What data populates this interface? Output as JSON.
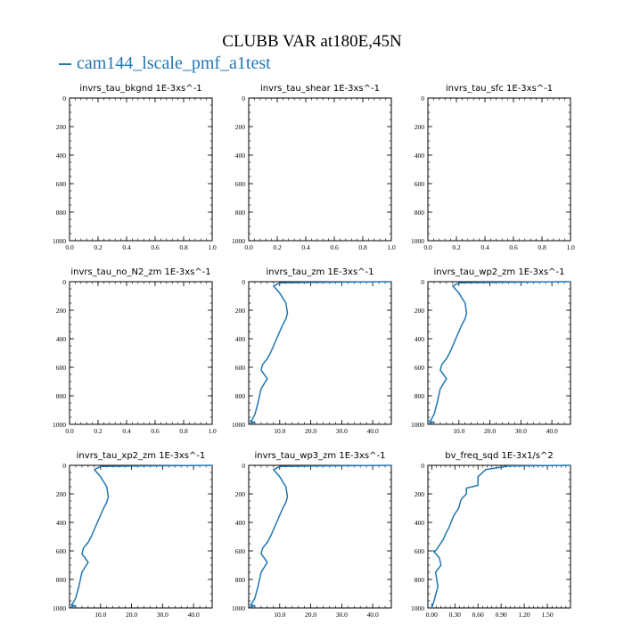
{
  "figure": {
    "title": "CLUBB VAR at180E,45N",
    "legend_label": "cam144_lscale_pmf_a1test",
    "line_color": "#1f77b4"
  },
  "chart_data": [
    {
      "type": "line",
      "title": "invrs_tau_bkgnd   1E-3xs^-1",
      "xlim": [
        0,
        1.0
      ],
      "ylim": [
        0,
        1000
      ],
      "y_inverted": true,
      "xticks": [
        0.0,
        0.2,
        0.4,
        0.6,
        0.8,
        1.0
      ],
      "xtick_labels": [
        "0.0",
        "0.2",
        "0.4",
        "0.6",
        "0.8",
        "1.0"
      ],
      "yticks": [
        0,
        200,
        400,
        600,
        800,
        1000
      ],
      "series": [
        {
          "x": [],
          "y": []
        }
      ]
    },
    {
      "type": "line",
      "title": "invrs_tau_shear   1E-3xs^-1",
      "xlim": [
        0,
        1.0
      ],
      "ylim": [
        0,
        1000
      ],
      "y_inverted": true,
      "xticks": [
        0.0,
        0.2,
        0.4,
        0.6,
        0.8,
        1.0
      ],
      "xtick_labels": [
        "0.0",
        "0.2",
        "0.4",
        "0.6",
        "0.8",
        "1.0"
      ],
      "yticks": [
        0,
        200,
        400,
        600,
        800,
        1000
      ],
      "series": [
        {
          "x": [],
          "y": []
        }
      ]
    },
    {
      "type": "line",
      "title": "invrs_tau_sfc   1E-3xs^-1",
      "xlim": [
        0,
        1.0
      ],
      "ylim": [
        0,
        1000
      ],
      "y_inverted": true,
      "xticks": [
        0.0,
        0.2,
        0.4,
        0.6,
        0.8,
        1.0
      ],
      "xtick_labels": [
        "0.0",
        "0.2",
        "0.4",
        "0.6",
        "0.8",
        "1.0"
      ],
      "yticks": [
        0,
        200,
        400,
        600,
        800,
        1000
      ],
      "series": [
        {
          "x": [],
          "y": []
        }
      ]
    },
    {
      "type": "line",
      "title": "invrs_tau_no_N2_zm   1E-3xs^-1",
      "xlim": [
        0,
        1.0
      ],
      "ylim": [
        0,
        1000
      ],
      "y_inverted": true,
      "xticks": [
        0.0,
        0.2,
        0.4,
        0.6,
        0.8,
        1.0
      ],
      "xtick_labels": [
        "0.0",
        "0.2",
        "0.4",
        "0.6",
        "0.8",
        "1.0"
      ],
      "yticks": [
        0,
        200,
        400,
        600,
        800,
        1000
      ],
      "series": [
        {
          "x": [],
          "y": []
        }
      ]
    },
    {
      "type": "line",
      "title": "invrs_tau_zm   1E-3xs^-1",
      "xlim": [
        0,
        46
      ],
      "ylim": [
        0,
        1000
      ],
      "y_inverted": true,
      "xticks": [
        10,
        20,
        30,
        40
      ],
      "xtick_labels": [
        "10.0",
        "20.0",
        "30.0",
        "40.0"
      ],
      "yticks": [
        0,
        200,
        400,
        600,
        800,
        1000
      ],
      "series": [
        {
          "x": [
            46,
            30,
            10,
            8,
            10,
            12,
            12.5,
            12,
            11,
            10,
            9,
            8,
            7,
            6,
            4.5,
            4,
            5,
            6,
            4,
            3,
            2,
            1,
            0.5,
            2,
            1,
            0.5,
            0.3
          ],
          "y": [
            0,
            3,
            8,
            30,
            80,
            150,
            220,
            260,
            300,
            350,
            400,
            450,
            500,
            540,
            580,
            620,
            650,
            680,
            750,
            850,
            930,
            970,
            980,
            985,
            990,
            995,
            1000
          ]
        }
      ]
    },
    {
      "type": "line",
      "title": "invrs_tau_wp2_zm   1E-3xs^-1",
      "xlim": [
        0,
        46
      ],
      "ylim": [
        0,
        1000
      ],
      "y_inverted": true,
      "xticks": [
        10,
        20,
        30,
        40
      ],
      "xtick_labels": [
        "10.0",
        "20.0",
        "30.0",
        "40.0"
      ],
      "yticks": [
        0,
        200,
        400,
        600,
        800,
        1000
      ],
      "series": [
        {
          "x": [
            46,
            30,
            10,
            8,
            10,
            12,
            12.5,
            12,
            11,
            10,
            9,
            8,
            7,
            6,
            4.5,
            4,
            5,
            6,
            4,
            3,
            2,
            1,
            0.5,
            2,
            1,
            0.5,
            0.3
          ],
          "y": [
            0,
            3,
            8,
            30,
            80,
            150,
            220,
            260,
            300,
            350,
            400,
            450,
            500,
            540,
            580,
            620,
            650,
            680,
            750,
            850,
            930,
            970,
            980,
            985,
            990,
            995,
            1000
          ]
        }
      ]
    },
    {
      "type": "line",
      "title": "invrs_tau_xp2_zm   1E-3xs^-1",
      "xlim": [
        0,
        46
      ],
      "ylim": [
        0,
        1000
      ],
      "y_inverted": true,
      "xticks": [
        10,
        20,
        30,
        40
      ],
      "xtick_labels": [
        "10.0",
        "20.0",
        "30.0",
        "40.0"
      ],
      "yticks": [
        0,
        200,
        400,
        600,
        800,
        1000
      ],
      "series": [
        {
          "x": [
            46,
            30,
            10,
            8,
            10,
            12,
            12.5,
            12,
            11,
            10,
            9,
            8,
            7,
            6,
            4.5,
            4,
            5,
            6,
            4,
            3,
            2,
            1,
            0.5,
            2,
            1,
            0.5,
            0.3
          ],
          "y": [
            0,
            3,
            8,
            30,
            80,
            150,
            220,
            260,
            300,
            350,
            400,
            450,
            500,
            540,
            580,
            620,
            650,
            680,
            750,
            850,
            930,
            970,
            980,
            985,
            990,
            995,
            1000
          ]
        }
      ]
    },
    {
      "type": "line",
      "title": "invrs_tau_wp3_zm   1E-3xs^-1",
      "xlim": [
        0,
        46
      ],
      "ylim": [
        0,
        1000
      ],
      "y_inverted": true,
      "xticks": [
        10,
        20,
        30,
        40
      ],
      "xtick_labels": [
        "10.0",
        "20.0",
        "30.0",
        "40.0"
      ],
      "yticks": [
        0,
        200,
        400,
        600,
        800,
        1000
      ],
      "series": [
        {
          "x": [
            46,
            30,
            10,
            8,
            10,
            12,
            12.5,
            12,
            11,
            10,
            9,
            8,
            7,
            6,
            4.5,
            4,
            5,
            6,
            4,
            3,
            2,
            1,
            0.5,
            2,
            1,
            0.5,
            0.3
          ],
          "y": [
            0,
            3,
            8,
            30,
            80,
            150,
            220,
            260,
            300,
            350,
            400,
            450,
            500,
            540,
            580,
            620,
            650,
            680,
            750,
            850,
            930,
            970,
            980,
            985,
            990,
            995,
            1000
          ]
        }
      ]
    },
    {
      "type": "line",
      "title": "bv_freq_sqd   1E-3x1/s^2",
      "xlim": [
        -0.05,
        1.8
      ],
      "ylim": [
        0,
        1000
      ],
      "y_inverted": true,
      "xticks": [
        0.0,
        0.3,
        0.6,
        0.9,
        1.2,
        1.5
      ],
      "xtick_labels": [
        "0.00",
        "0.30",
        "0.60",
        "0.90",
        "1.20",
        "1.50"
      ],
      "yticks": [
        0,
        200,
        400,
        600,
        800,
        1000
      ],
      "series": [
        {
          "x": [
            1.8,
            1.0,
            0.7,
            0.6,
            0.6,
            0.45,
            0.45,
            0.38,
            0.35,
            0.3,
            0.28,
            0.22,
            0.18,
            0.15,
            0.1,
            0.05,
            0.02,
            0.1,
            0.12,
            0.05,
            0.08,
            0.03,
            0.0
          ],
          "y": [
            0,
            5,
            30,
            80,
            140,
            160,
            200,
            240,
            300,
            340,
            360,
            440,
            480,
            520,
            560,
            600,
            600,
            650,
            700,
            750,
            850,
            950,
            1000
          ]
        }
      ]
    }
  ]
}
